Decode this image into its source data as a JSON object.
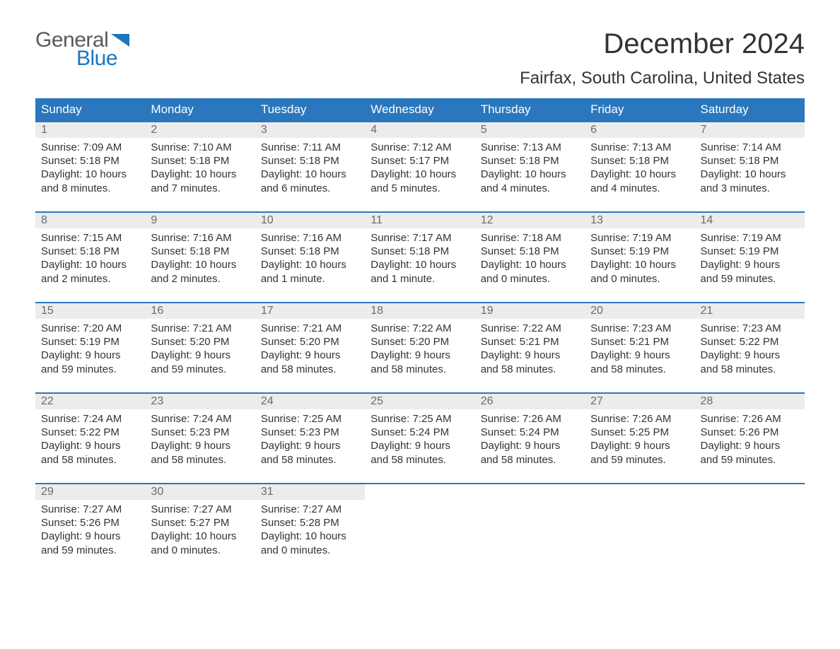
{
  "brand": {
    "word1": "General",
    "word2": "Blue",
    "shape_color": "#1976c1",
    "text_gray": "#5a5a5a"
  },
  "title": "December 2024",
  "location": "Fairfax, South Carolina, United States",
  "theme": {
    "header_bg": "#2a77bd",
    "header_fg": "#ffffff",
    "daynum_bg": "#ececec",
    "daynum_fg": "#6a6a6a",
    "body_bg": "#ffffff",
    "text_color": "#333333",
    "week_border": "#2a77bd"
  },
  "columns": [
    "Sunday",
    "Monday",
    "Tuesday",
    "Wednesday",
    "Thursday",
    "Friday",
    "Saturday"
  ],
  "weeks": [
    [
      {
        "n": "1",
        "sunrise": "Sunrise: 7:09 AM",
        "sunset": "Sunset: 5:18 PM",
        "day1": "Daylight: 10 hours",
        "day2": "and 8 minutes."
      },
      {
        "n": "2",
        "sunrise": "Sunrise: 7:10 AM",
        "sunset": "Sunset: 5:18 PM",
        "day1": "Daylight: 10 hours",
        "day2": "and 7 minutes."
      },
      {
        "n": "3",
        "sunrise": "Sunrise: 7:11 AM",
        "sunset": "Sunset: 5:18 PM",
        "day1": "Daylight: 10 hours",
        "day2": "and 6 minutes."
      },
      {
        "n": "4",
        "sunrise": "Sunrise: 7:12 AM",
        "sunset": "Sunset: 5:17 PM",
        "day1": "Daylight: 10 hours",
        "day2": "and 5 minutes."
      },
      {
        "n": "5",
        "sunrise": "Sunrise: 7:13 AM",
        "sunset": "Sunset: 5:18 PM",
        "day1": "Daylight: 10 hours",
        "day2": "and 4 minutes."
      },
      {
        "n": "6",
        "sunrise": "Sunrise: 7:13 AM",
        "sunset": "Sunset: 5:18 PM",
        "day1": "Daylight: 10 hours",
        "day2": "and 4 minutes."
      },
      {
        "n": "7",
        "sunrise": "Sunrise: 7:14 AM",
        "sunset": "Sunset: 5:18 PM",
        "day1": "Daylight: 10 hours",
        "day2": "and 3 minutes."
      }
    ],
    [
      {
        "n": "8",
        "sunrise": "Sunrise: 7:15 AM",
        "sunset": "Sunset: 5:18 PM",
        "day1": "Daylight: 10 hours",
        "day2": "and 2 minutes."
      },
      {
        "n": "9",
        "sunrise": "Sunrise: 7:16 AM",
        "sunset": "Sunset: 5:18 PM",
        "day1": "Daylight: 10 hours",
        "day2": "and 2 minutes."
      },
      {
        "n": "10",
        "sunrise": "Sunrise: 7:16 AM",
        "sunset": "Sunset: 5:18 PM",
        "day1": "Daylight: 10 hours",
        "day2": "and 1 minute."
      },
      {
        "n": "11",
        "sunrise": "Sunrise: 7:17 AM",
        "sunset": "Sunset: 5:18 PM",
        "day1": "Daylight: 10 hours",
        "day2": "and 1 minute."
      },
      {
        "n": "12",
        "sunrise": "Sunrise: 7:18 AM",
        "sunset": "Sunset: 5:18 PM",
        "day1": "Daylight: 10 hours",
        "day2": "and 0 minutes."
      },
      {
        "n": "13",
        "sunrise": "Sunrise: 7:19 AM",
        "sunset": "Sunset: 5:19 PM",
        "day1": "Daylight: 10 hours",
        "day2": "and 0 minutes."
      },
      {
        "n": "14",
        "sunrise": "Sunrise: 7:19 AM",
        "sunset": "Sunset: 5:19 PM",
        "day1": "Daylight: 9 hours",
        "day2": "and 59 minutes."
      }
    ],
    [
      {
        "n": "15",
        "sunrise": "Sunrise: 7:20 AM",
        "sunset": "Sunset: 5:19 PM",
        "day1": "Daylight: 9 hours",
        "day2": "and 59 minutes."
      },
      {
        "n": "16",
        "sunrise": "Sunrise: 7:21 AM",
        "sunset": "Sunset: 5:20 PM",
        "day1": "Daylight: 9 hours",
        "day2": "and 59 minutes."
      },
      {
        "n": "17",
        "sunrise": "Sunrise: 7:21 AM",
        "sunset": "Sunset: 5:20 PM",
        "day1": "Daylight: 9 hours",
        "day2": "and 58 minutes."
      },
      {
        "n": "18",
        "sunrise": "Sunrise: 7:22 AM",
        "sunset": "Sunset: 5:20 PM",
        "day1": "Daylight: 9 hours",
        "day2": "and 58 minutes."
      },
      {
        "n": "19",
        "sunrise": "Sunrise: 7:22 AM",
        "sunset": "Sunset: 5:21 PM",
        "day1": "Daylight: 9 hours",
        "day2": "and 58 minutes."
      },
      {
        "n": "20",
        "sunrise": "Sunrise: 7:23 AM",
        "sunset": "Sunset: 5:21 PM",
        "day1": "Daylight: 9 hours",
        "day2": "and 58 minutes."
      },
      {
        "n": "21",
        "sunrise": "Sunrise: 7:23 AM",
        "sunset": "Sunset: 5:22 PM",
        "day1": "Daylight: 9 hours",
        "day2": "and 58 minutes."
      }
    ],
    [
      {
        "n": "22",
        "sunrise": "Sunrise: 7:24 AM",
        "sunset": "Sunset: 5:22 PM",
        "day1": "Daylight: 9 hours",
        "day2": "and 58 minutes."
      },
      {
        "n": "23",
        "sunrise": "Sunrise: 7:24 AM",
        "sunset": "Sunset: 5:23 PM",
        "day1": "Daylight: 9 hours",
        "day2": "and 58 minutes."
      },
      {
        "n": "24",
        "sunrise": "Sunrise: 7:25 AM",
        "sunset": "Sunset: 5:23 PM",
        "day1": "Daylight: 9 hours",
        "day2": "and 58 minutes."
      },
      {
        "n": "25",
        "sunrise": "Sunrise: 7:25 AM",
        "sunset": "Sunset: 5:24 PM",
        "day1": "Daylight: 9 hours",
        "day2": "and 58 minutes."
      },
      {
        "n": "26",
        "sunrise": "Sunrise: 7:26 AM",
        "sunset": "Sunset: 5:24 PM",
        "day1": "Daylight: 9 hours",
        "day2": "and 58 minutes."
      },
      {
        "n": "27",
        "sunrise": "Sunrise: 7:26 AM",
        "sunset": "Sunset: 5:25 PM",
        "day1": "Daylight: 9 hours",
        "day2": "and 59 minutes."
      },
      {
        "n": "28",
        "sunrise": "Sunrise: 7:26 AM",
        "sunset": "Sunset: 5:26 PM",
        "day1": "Daylight: 9 hours",
        "day2": "and 59 minutes."
      }
    ],
    [
      {
        "n": "29",
        "sunrise": "Sunrise: 7:27 AM",
        "sunset": "Sunset: 5:26 PM",
        "day1": "Daylight: 9 hours",
        "day2": "and 59 minutes."
      },
      {
        "n": "30",
        "sunrise": "Sunrise: 7:27 AM",
        "sunset": "Sunset: 5:27 PM",
        "day1": "Daylight: 10 hours",
        "day2": "and 0 minutes."
      },
      {
        "n": "31",
        "sunrise": "Sunrise: 7:27 AM",
        "sunset": "Sunset: 5:28 PM",
        "day1": "Daylight: 10 hours",
        "day2": "and 0 minutes."
      },
      null,
      null,
      null,
      null
    ]
  ]
}
